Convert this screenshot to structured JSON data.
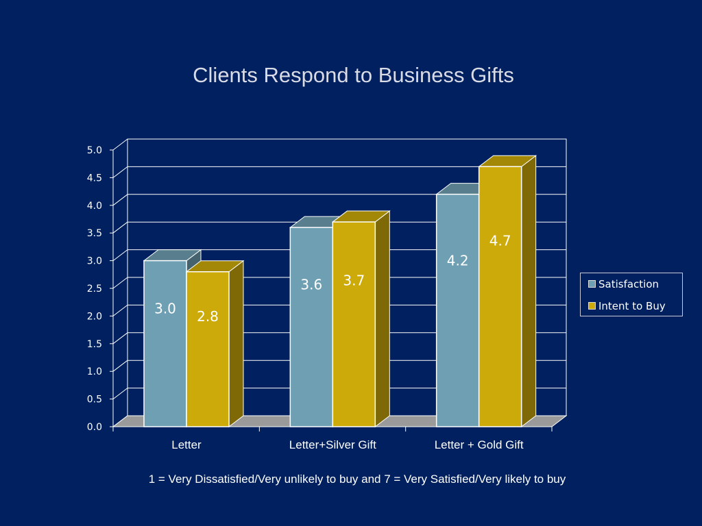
{
  "title": "Clients Respond to Business Gifts",
  "footnote": "1 = Very Dissatisfied/Very unlikely to buy and 7 = Very Satisfied/Very likely to buy",
  "colors": {
    "background": "#00205f",
    "satisfaction": "#6f9fb2",
    "intent_to_buy": "#ccaa0a"
  },
  "chart_data": {
    "type": "bar",
    "style": "3d-clustered",
    "title": "Clients Respond to Business Gifts",
    "categories": [
      "Letter",
      "Letter+Silver Gift",
      "Letter + Gold Gift"
    ],
    "series": [
      {
        "name": "Satisfaction",
        "values": [
          3.0,
          3.6,
          4.2
        ],
        "labels": [
          "3.0",
          "3.6",
          "4.2"
        ],
        "color": "#6f9fb2"
      },
      {
        "name": "Intent to Buy",
        "values": [
          2.8,
          3.7,
          4.7
        ],
        "labels": [
          "2.8",
          "3.7",
          "4.7"
        ],
        "color": "#ccaa0a"
      }
    ],
    "ylim": [
      0,
      5
    ],
    "yticks": [
      "0.0",
      "0.5",
      "1.0",
      "1.5",
      "2.0",
      "2.5",
      "3.0",
      "3.5",
      "4.0",
      "4.5",
      "5.0"
    ],
    "grid": true,
    "legend": "right"
  }
}
